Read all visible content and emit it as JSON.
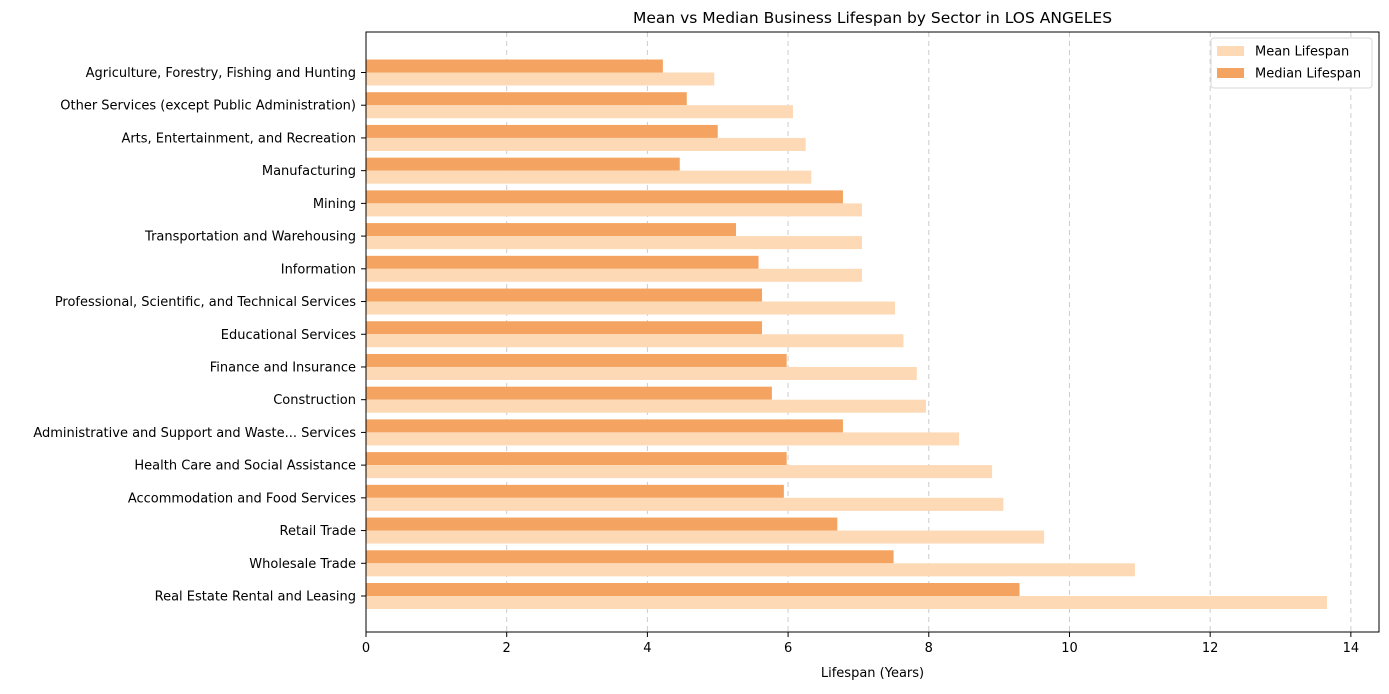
{
  "chart_data": {
    "type": "bar",
    "orientation": "horizontal",
    "title": "Mean vs Median Business Lifespan by Sector in LOS ANGELES",
    "xlabel": "Lifespan (Years)",
    "ylabel": "",
    "xlim": [
      0,
      14.4
    ],
    "xticks": [
      0,
      2,
      4,
      6,
      8,
      10,
      12,
      14
    ],
    "grid": "x-dashed",
    "legend_position": "top-right",
    "categories": [
      "Agriculture, Forestry, Fishing and Hunting",
      "Other Services (except Public Administration)",
      "Arts, Entertainment, and Recreation",
      "Manufacturing",
      "Mining",
      "Transportation and Warehousing",
      "Information",
      "Professional, Scientific, and Technical Services",
      "Educational Services",
      "Finance and Insurance",
      "Construction",
      "Administrative and Support and Waste... Services",
      "Health Care and Social Assistance",
      "Accommodation and Food Services",
      "Retail Trade",
      "Wholesale Trade",
      "Real Estate Rental and Leasing"
    ],
    "series": [
      {
        "name": "Mean Lifespan",
        "color": "#fdd9b5",
        "values": [
          4.95,
          6.07,
          6.25,
          6.33,
          7.05,
          7.05,
          7.05,
          7.52,
          7.64,
          7.83,
          7.96,
          8.43,
          8.9,
          9.06,
          9.64,
          10.93,
          13.66
        ]
      },
      {
        "name": "Median Lifespan",
        "color": "#f4a460",
        "values": [
          4.22,
          4.56,
          5.0,
          4.46,
          6.78,
          5.26,
          5.58,
          5.63,
          5.63,
          5.98,
          5.77,
          6.78,
          5.98,
          5.94,
          6.7,
          7.5,
          9.29
        ]
      }
    ]
  }
}
